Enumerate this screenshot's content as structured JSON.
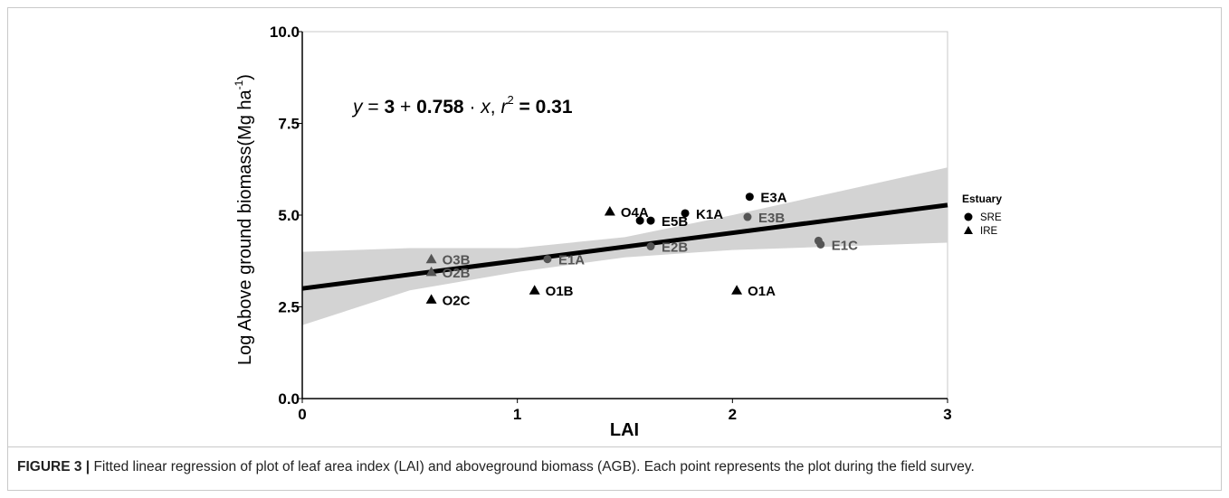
{
  "caption": {
    "label": "FIGURE 3 |",
    "text": "Fitted linear regression of plot of leaf area index (LAI) and aboveground biomass (AGB). Each point represents the plot during the field survey."
  },
  "chart_data": {
    "type": "scatter",
    "xlabel": "LAI",
    "ylabel_main": "Log Above ground biomass(Mg  ha",
    "ylabel_sup": "-1",
    "ylabel_close": ")",
    "xlim": [
      0,
      3
    ],
    "ylim": [
      0,
      10
    ],
    "x_ticks": [
      {
        "v": 0,
        "label": "0"
      },
      {
        "v": 1,
        "label": "1"
      },
      {
        "v": 2,
        "label": "2"
      },
      {
        "v": 3,
        "label": "3"
      }
    ],
    "y_ticks": [
      {
        "v": 0,
        "label": "0.0"
      },
      {
        "v": 2.5,
        "label": "2.5"
      },
      {
        "v": 5,
        "label": "5.0"
      },
      {
        "v": 7.5,
        "label": "7.5"
      },
      {
        "v": 10,
        "label": "10.0"
      }
    ],
    "equation": {
      "y": "y",
      "eq": " = ",
      "intercept": "3",
      "plus": " + ",
      "slope": "0.758",
      "dot": " · ",
      "x": "x",
      "comma": ",  ",
      "r": "r",
      "r_sup": "2",
      "r_eq": " = ",
      "r_val": "0.31"
    },
    "regression": {
      "intercept": 3,
      "slope": 0.758,
      "x_range": [
        0,
        3
      ]
    },
    "confidence_band": [
      {
        "x": 0,
        "lo": 2.0,
        "hi": 4.0
      },
      {
        "x": 0.5,
        "lo": 2.95,
        "hi": 4.1
      },
      {
        "x": 1,
        "lo": 3.45,
        "hi": 4.1
      },
      {
        "x": 1.5,
        "lo": 3.85,
        "hi": 4.4
      },
      {
        "x": 2,
        "lo": 4.05,
        "hi": 5.0
      },
      {
        "x": 2.5,
        "lo": 4.15,
        "hi": 5.65
      },
      {
        "x": 3,
        "lo": 4.25,
        "hi": 6.3
      }
    ],
    "legend": {
      "title": "Estuary",
      "position": "right",
      "entries": [
        {
          "label": "SRE",
          "shape": "circle"
        },
        {
          "label": "IRE",
          "shape": "triangle"
        }
      ]
    },
    "points": [
      {
        "label": "O3B",
        "x": 0.6,
        "y": 3.8,
        "shape": "triangle",
        "color": "#555555"
      },
      {
        "label": "O2B",
        "x": 0.6,
        "y": 3.45,
        "shape": "triangle",
        "color": "#555555"
      },
      {
        "label": "O2C",
        "x": 0.6,
        "y": 2.7,
        "shape": "triangle",
        "color": "#000000"
      },
      {
        "label": "O1B",
        "x": 1.08,
        "y": 2.95,
        "shape": "triangle",
        "color": "#000000"
      },
      {
        "label": "E1A",
        "x": 1.14,
        "y": 3.8,
        "shape": "circle",
        "color": "#555555"
      },
      {
        "label": "O4A",
        "x": 1.43,
        "y": 5.1,
        "shape": "triangle",
        "color": "#000000"
      },
      {
        "label": "",
        "x": 1.57,
        "y": 4.85,
        "shape": "circle",
        "color": "#000000"
      },
      {
        "label": "E5B",
        "x": 1.62,
        "y": 4.85,
        "shape": "circle",
        "color": "#000000"
      },
      {
        "label": "E2B",
        "x": 1.62,
        "y": 4.15,
        "shape": "circle",
        "color": "#555555"
      },
      {
        "label": "K1A",
        "x": 1.78,
        "y": 5.05,
        "shape": "circle",
        "color": "#000000"
      },
      {
        "label": "O1A",
        "x": 2.02,
        "y": 2.95,
        "shape": "triangle",
        "color": "#000000"
      },
      {
        "label": "E3A",
        "x": 2.08,
        "y": 5.5,
        "shape": "circle",
        "color": "#000000"
      },
      {
        "label": "E3B",
        "x": 2.07,
        "y": 4.95,
        "shape": "circle",
        "color": "#555555"
      },
      {
        "label": "",
        "x": 2.4,
        "y": 4.3,
        "shape": "circle",
        "color": "#555555"
      },
      {
        "label": "E1C",
        "x": 2.41,
        "y": 4.2,
        "shape": "circle",
        "color": "#555555"
      }
    ]
  }
}
